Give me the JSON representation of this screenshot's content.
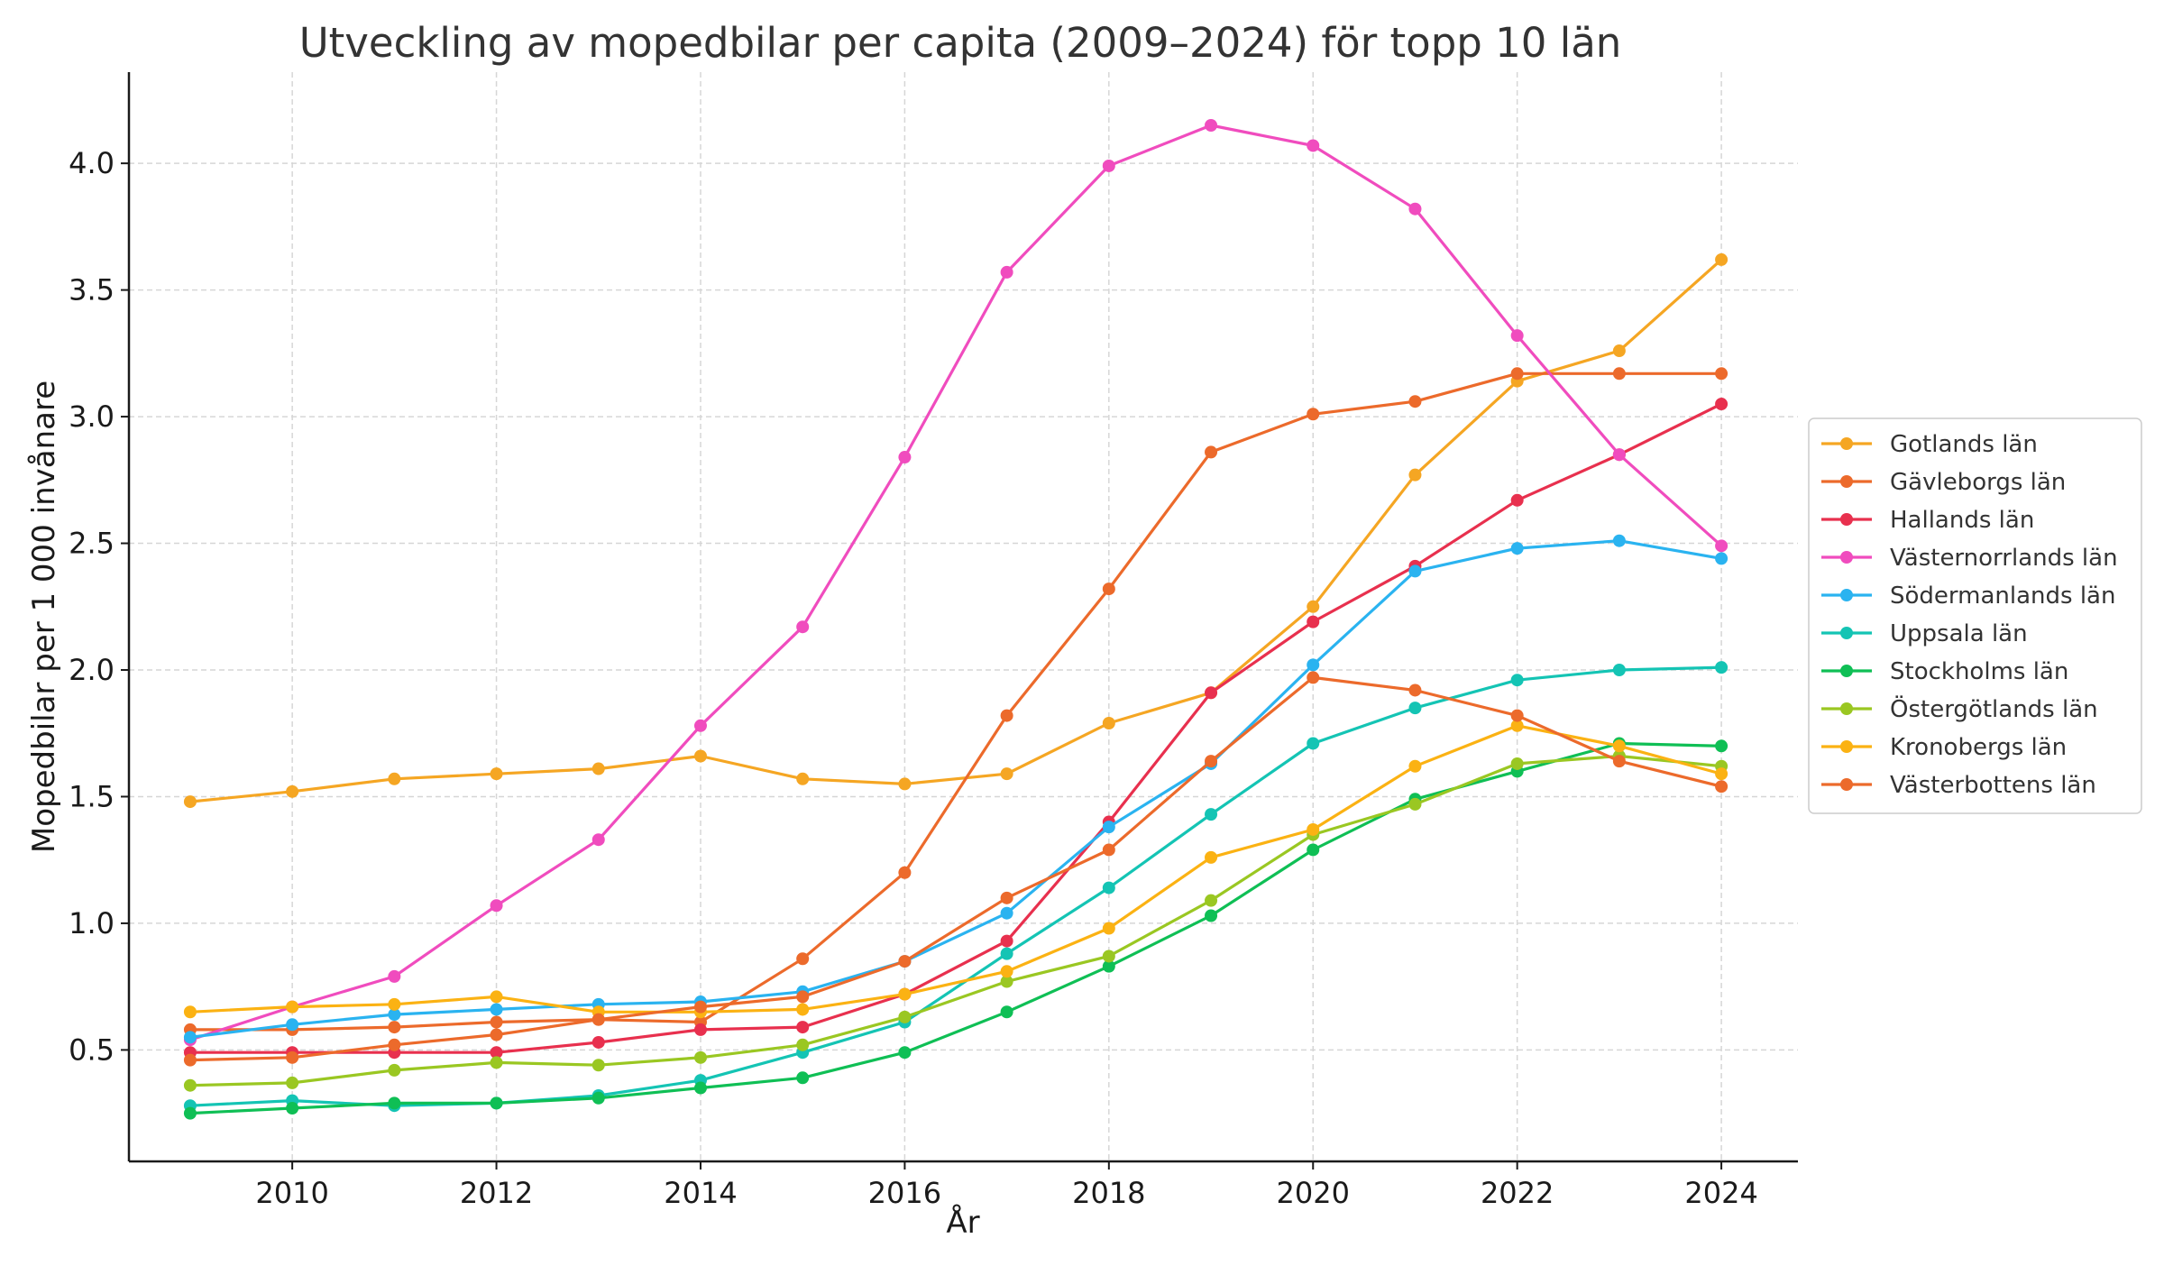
{
  "chart_data": {
    "type": "line",
    "title": "Utveckling av mopedbilar per capita (2009–2024) för topp 10 län",
    "xlabel": "År",
    "ylabel": "Mopedbilar per 1 000 invånare",
    "x": [
      2009,
      2010,
      2011,
      2012,
      2013,
      2014,
      2015,
      2016,
      2017,
      2018,
      2019,
      2020,
      2021,
      2022,
      2023,
      2024
    ],
    "xlim": [
      2008.4,
      2024.75
    ],
    "ylim": [
      0.06,
      4.36
    ],
    "x_ticks": [
      "2010",
      "2012",
      "2014",
      "2016",
      "2018",
      "2020",
      "2022",
      "2024"
    ],
    "y_ticks": [
      "0.5",
      "1.0",
      "1.5",
      "2.0",
      "2.5",
      "3.0",
      "3.5",
      "4.0"
    ],
    "grid": true,
    "legend_position": "center-right",
    "series": [
      {
        "name": "Gotlands län",
        "color": "#f5a623",
        "values": [
          1.48,
          1.52,
          1.57,
          1.59,
          1.61,
          1.66,
          1.57,
          1.55,
          1.59,
          1.79,
          1.91,
          2.25,
          2.77,
          3.14,
          3.26,
          3.62
        ]
      },
      {
        "name": "Gävleborgs län",
        "color": "#ec6a2b",
        "values": [
          0.58,
          0.58,
          0.59,
          0.61,
          0.62,
          0.61,
          0.86,
          1.2,
          1.82,
          2.32,
          2.86,
          3.01,
          3.06,
          3.17,
          3.17,
          3.17
        ]
      },
      {
        "name": "Hallands län",
        "color": "#e8304e",
        "values": [
          0.49,
          0.49,
          0.49,
          0.49,
          0.53,
          0.58,
          0.59,
          0.72,
          0.93,
          1.4,
          1.91,
          2.19,
          2.41,
          2.67,
          2.85,
          3.05
        ]
      },
      {
        "name": "Västernorrlands län",
        "color": "#f04cbe",
        "values": [
          0.54,
          0.67,
          0.79,
          1.07,
          1.33,
          1.78,
          2.17,
          2.84,
          3.57,
          3.99,
          4.15,
          4.07,
          3.82,
          3.32,
          2.85,
          2.49
        ]
      },
      {
        "name": "Södermanlands län",
        "color": "#2ab3f0",
        "values": [
          0.55,
          0.6,
          0.64,
          0.66,
          0.68,
          0.69,
          0.73,
          0.85,
          1.04,
          1.38,
          1.63,
          2.02,
          2.39,
          2.48,
          2.51,
          2.44
        ]
      },
      {
        "name": "Uppsala län",
        "color": "#14c4b4",
        "values": [
          0.28,
          0.3,
          0.28,
          0.29,
          0.32,
          0.38,
          0.49,
          0.61,
          0.88,
          1.14,
          1.43,
          1.71,
          1.85,
          1.96,
          2.0,
          2.01
        ]
      },
      {
        "name": "Stockholms län",
        "color": "#0fbf55",
        "values": [
          0.25,
          0.27,
          0.29,
          0.29,
          0.31,
          0.35,
          0.39,
          0.49,
          0.65,
          0.83,
          1.03,
          1.29,
          1.49,
          1.6,
          1.71,
          1.7
        ]
      },
      {
        "name": "Östergötlands län",
        "color": "#9ac722",
        "values": [
          0.36,
          0.37,
          0.42,
          0.45,
          0.44,
          0.47,
          0.52,
          0.63,
          0.77,
          0.87,
          1.09,
          1.35,
          1.47,
          1.63,
          1.66,
          1.62
        ]
      },
      {
        "name": "Kronobergs län",
        "color": "#fbb213",
        "values": [
          0.65,
          0.67,
          0.68,
          0.71,
          0.65,
          0.65,
          0.66,
          0.72,
          0.81,
          0.98,
          1.26,
          1.37,
          1.62,
          1.78,
          1.7,
          1.59
        ]
      },
      {
        "name": "Västerbottens län",
        "color": "#ec6a2b",
        "values": [
          0.46,
          0.47,
          0.52,
          0.56,
          0.62,
          0.67,
          0.71,
          0.85,
          1.1,
          1.29,
          1.64,
          1.97,
          1.92,
          1.82,
          1.64,
          1.54
        ]
      }
    ]
  }
}
